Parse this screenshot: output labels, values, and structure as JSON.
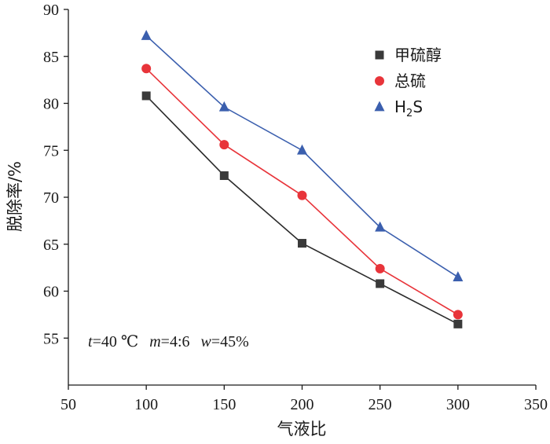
{
  "chart_data": {
    "type": "line",
    "xlabel": "气液比",
    "ylabel": "脱除率/%",
    "xlim": [
      50,
      350
    ],
    "ylim": [
      50,
      90
    ],
    "xticks": [
      50,
      100,
      150,
      200,
      250,
      300,
      350
    ],
    "yticks": [
      55,
      60,
      65,
      70,
      75,
      80,
      85,
      90
    ],
    "x": [
      100,
      150,
      200,
      250,
      300
    ],
    "legend_position": "top-right",
    "grid": false,
    "series": [
      {
        "name": "甲硫醇",
        "marker": "square",
        "color": "#3a3a3a",
        "line_color": "#2b2b2b",
        "values": [
          80.8,
          72.3,
          65.1,
          60.8,
          56.5
        ]
      },
      {
        "name": "总硫",
        "marker": "circle",
        "color": "#e8343a",
        "line_color": "#e8343a",
        "values": [
          83.7,
          75.6,
          70.2,
          62.4,
          57.5
        ]
      },
      {
        "name": "H2S",
        "marker": "triangle",
        "color": "#3b5fae",
        "line_color": "#3b5fae",
        "values": [
          87.2,
          79.6,
          75.0,
          66.8,
          61.5
        ]
      }
    ],
    "annotation": {
      "t_var": "t",
      "t_val": "=40 ℃",
      "m_var": "m",
      "m_val": "=4:6",
      "w_var": "w",
      "w_val": "=45%"
    }
  }
}
